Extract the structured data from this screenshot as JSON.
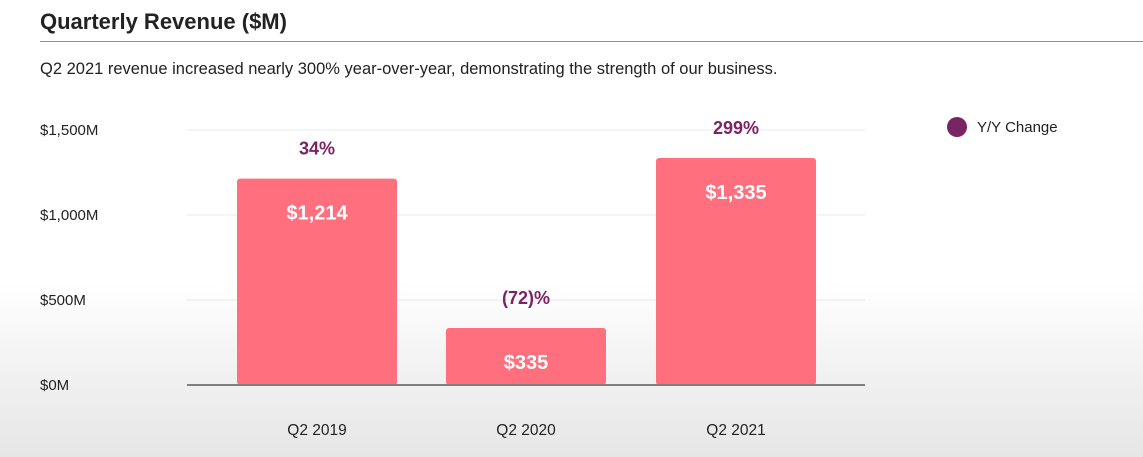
{
  "header": {
    "title": "Quarterly Revenue ($M)",
    "subtitle": "Q2 2021 revenue increased nearly 300% year-over-year, demonstrating the strength of our business."
  },
  "legend": {
    "label": "Y/Y Change",
    "color": "#7a2464"
  },
  "colors": {
    "bar": "#ff6f7e",
    "change_label": "#7a2464",
    "value_label": "#ffffff",
    "grid": "#e8e8e8",
    "axis": "#7f7f7f"
  },
  "chart_data": {
    "type": "bar",
    "title": "Quarterly Revenue ($M)",
    "categories": [
      "Q2 2019",
      "Q2 2020",
      "Q2 2021"
    ],
    "values": [
      1214,
      335,
      1335
    ],
    "value_labels": [
      "$1,214",
      "$335",
      "$1,335"
    ],
    "annotations": [
      "34%",
      "(72)%",
      "299%"
    ],
    "annotation_series": "Y/Y Change",
    "y_ticks": [
      0,
      500,
      1000,
      1500
    ],
    "y_tick_labels": [
      "$0M",
      "$500M",
      "$1,000M",
      "$1,500M"
    ],
    "ylim": [
      0,
      1500
    ],
    "grid": true,
    "legend_position": "top-right",
    "xlabel": "",
    "ylabel": ""
  }
}
